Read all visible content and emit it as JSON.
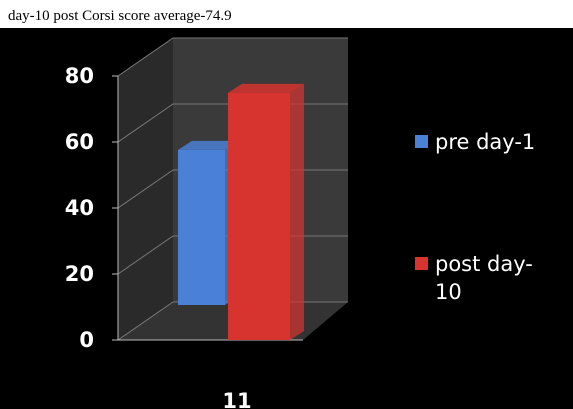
{
  "chart_data": {
    "type": "bar3d",
    "subtitle": "day-10 post Corsi score average-74.9",
    "categories": [
      "11"
    ],
    "series": [
      {
        "name": "pre day-1",
        "color": "#4a80d6",
        "values": [
          47
        ]
      },
      {
        "name": "post day-10",
        "color": "#d8342f",
        "values": [
          74.9
        ]
      }
    ],
    "ylim": [
      0,
      80
    ],
    "yticks": [
      0,
      20,
      40,
      60,
      80
    ],
    "grid": true,
    "legend": "right"
  }
}
